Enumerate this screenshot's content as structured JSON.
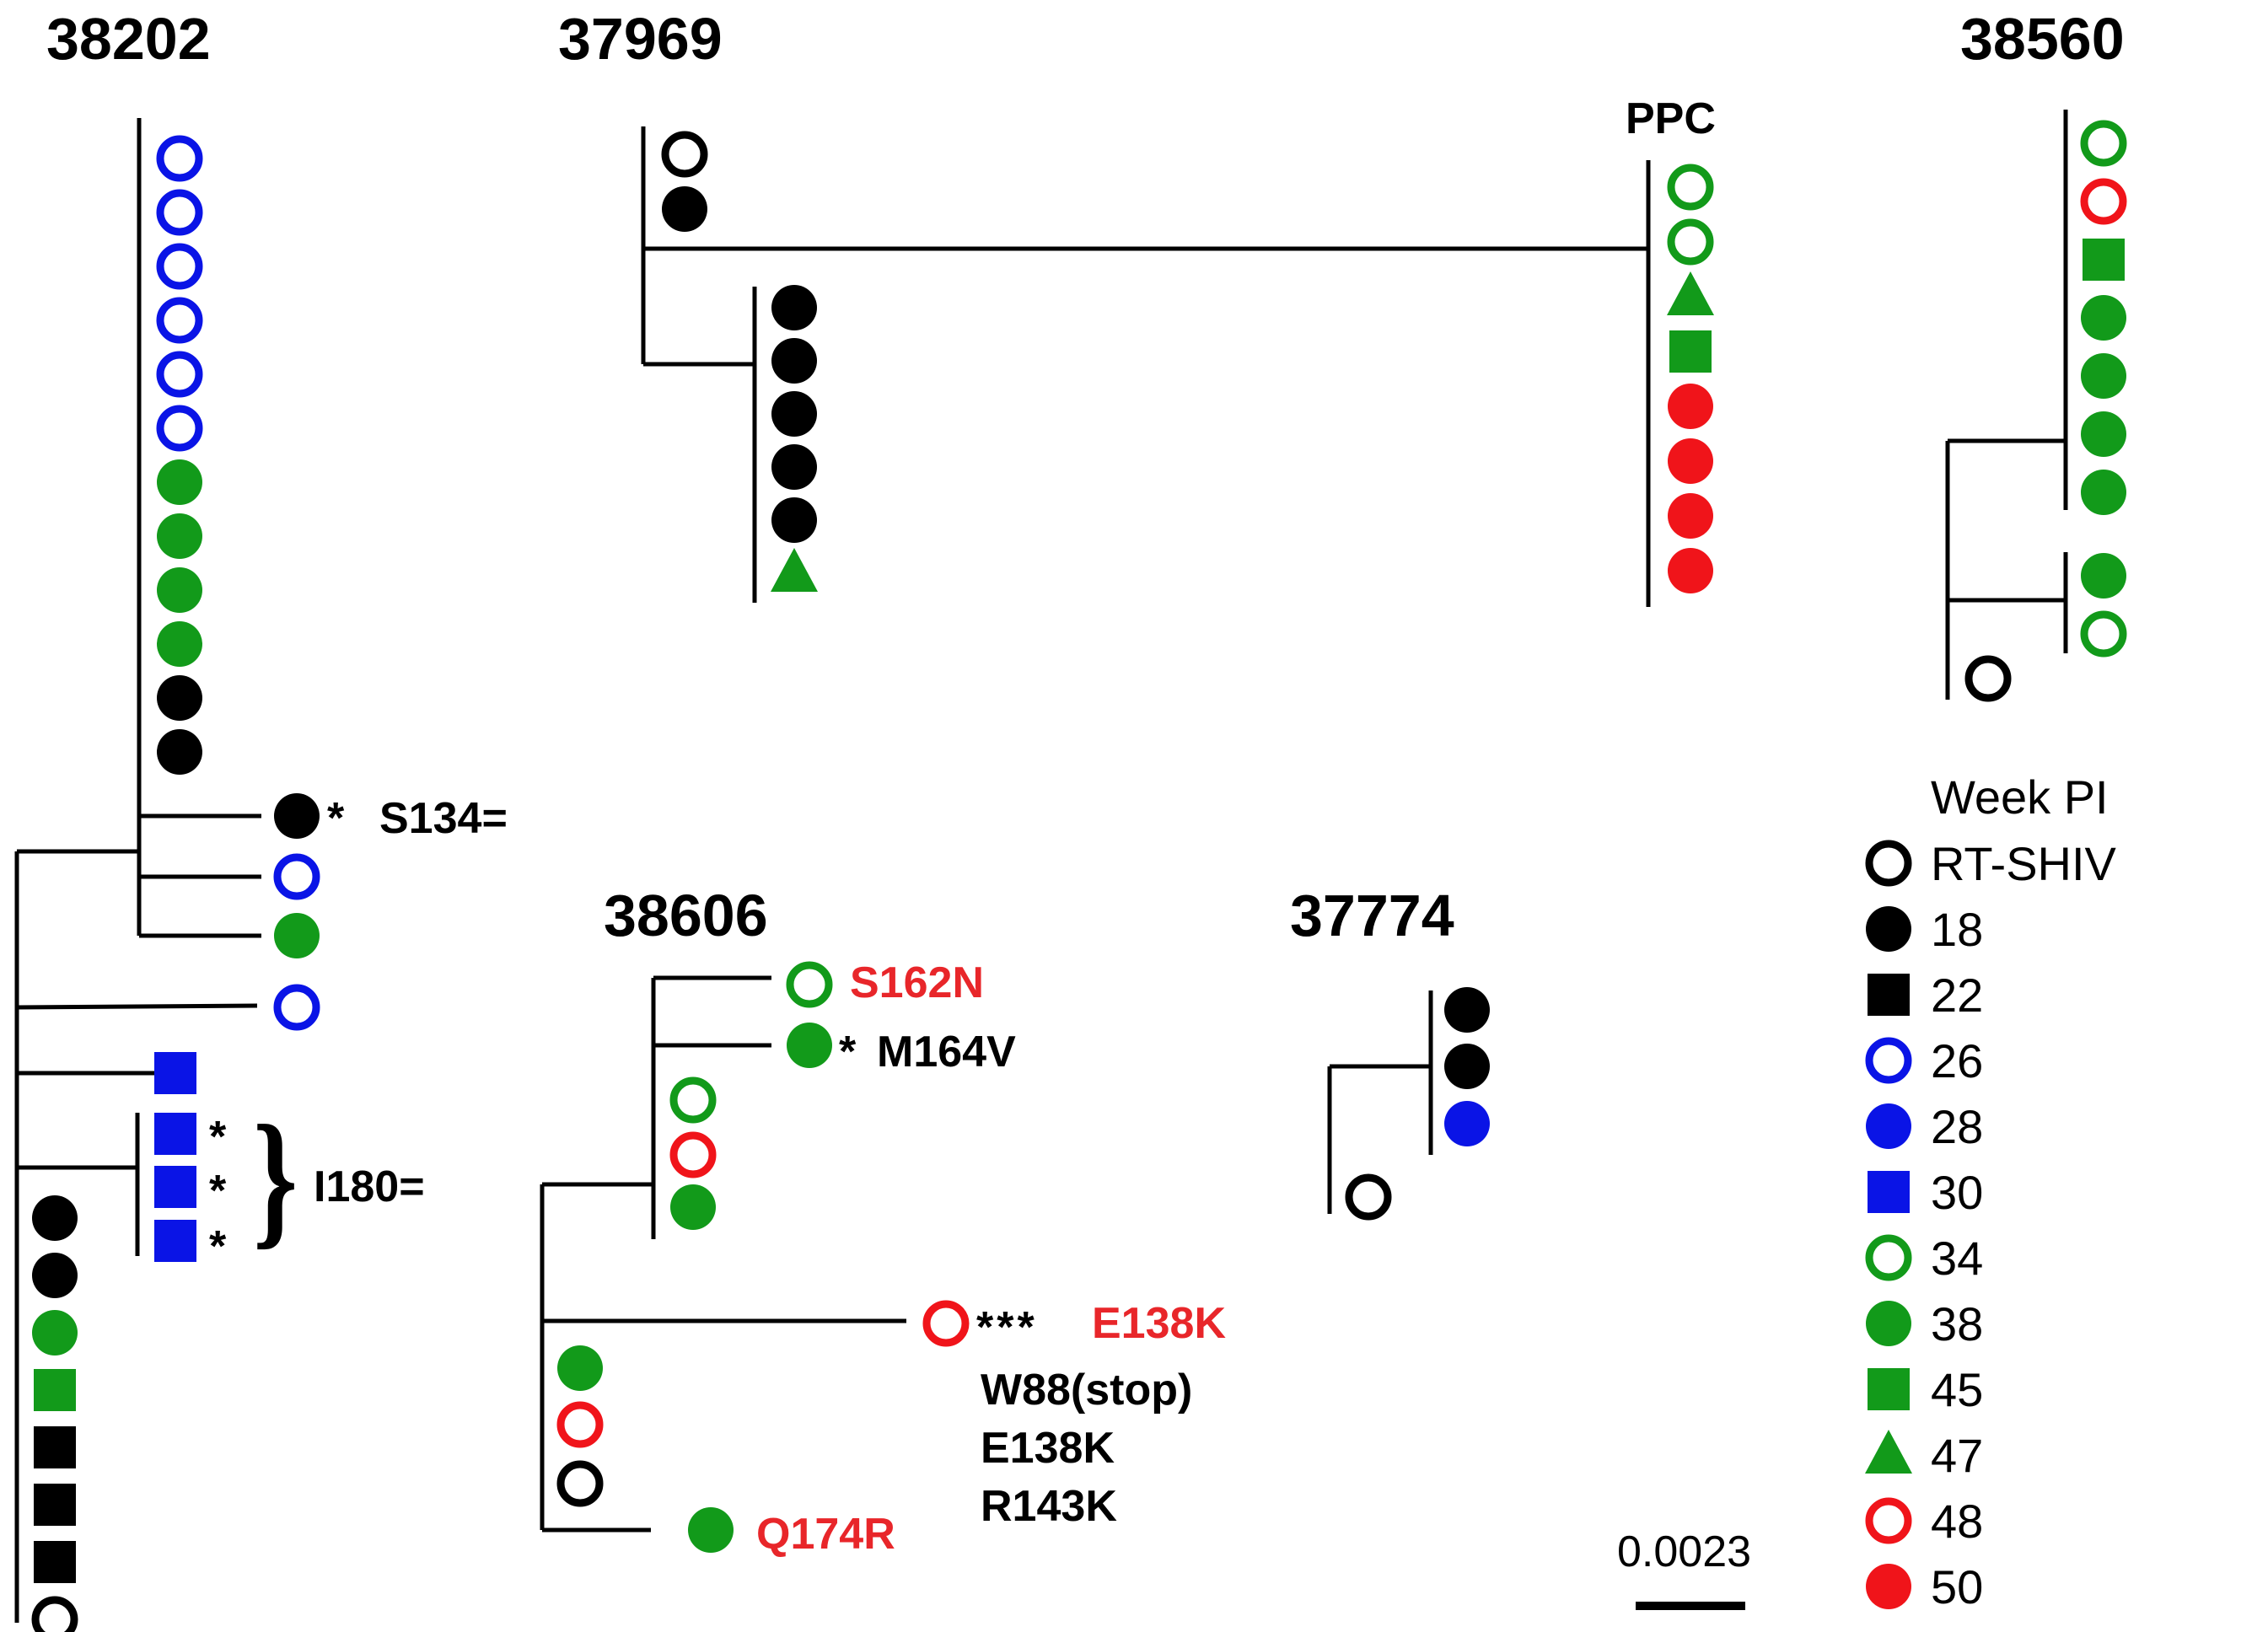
{
  "colors": {
    "black": "#000000",
    "blue": "#0a14e6",
    "green": "#129a1a",
    "red": "#f0141a"
  },
  "trees": [
    {
      "id": "t38202",
      "title": "38202"
    },
    {
      "id": "t37969",
      "title": "37969"
    },
    {
      "id": "t38560",
      "title": "38560"
    },
    {
      "id": "t38606",
      "title": "38606"
    },
    {
      "id": "t37774",
      "title": "37774"
    }
  ],
  "labels": {
    "ppc": "PPC",
    "s134": "S134=",
    "i180": "I180=",
    "s162n": "S162N",
    "m164v": "M164V",
    "e138k_red": "E138K",
    "w88": "W88(stop)",
    "e138k": "E138K",
    "r143k": "R143K",
    "q174r": "Q174R",
    "star1": "*",
    "star3": "***",
    "brace": "}"
  },
  "legend": {
    "title": "Week PI",
    "items": [
      {
        "label": "RT-SHIV",
        "shape": "ring",
        "color": "black"
      },
      {
        "label": "18",
        "shape": "dot",
        "color": "black"
      },
      {
        "label": "22",
        "shape": "square",
        "color": "black"
      },
      {
        "label": "26",
        "shape": "ring",
        "color": "blue"
      },
      {
        "label": "28",
        "shape": "dot",
        "color": "blue"
      },
      {
        "label": "30",
        "shape": "square",
        "color": "blue"
      },
      {
        "label": "34",
        "shape": "ring",
        "color": "green"
      },
      {
        "label": "38",
        "shape": "dot",
        "color": "green"
      },
      {
        "label": "45",
        "shape": "square",
        "color": "green"
      },
      {
        "label": "47",
        "shape": "triangle",
        "color": "green"
      },
      {
        "label": "48",
        "shape": "ring",
        "color": "red"
      },
      {
        "label": "50",
        "shape": "dot",
        "color": "red"
      }
    ]
  },
  "scale_bar": {
    "value": "0.0023"
  }
}
